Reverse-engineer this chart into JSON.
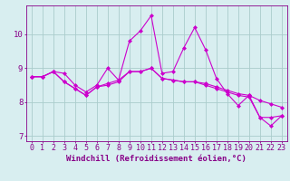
{
  "xlabel": "Windchill (Refroidissement éolien,°C)",
  "x": [
    0,
    1,
    2,
    3,
    4,
    5,
    6,
    7,
    8,
    9,
    10,
    11,
    12,
    13,
    14,
    15,
    16,
    17,
    18,
    19,
    20,
    21,
    22,
    23
  ],
  "line1": [
    8.75,
    8.75,
    8.9,
    8.85,
    8.5,
    8.3,
    8.5,
    9.0,
    8.65,
    9.8,
    10.1,
    10.55,
    8.85,
    8.9,
    9.6,
    10.2,
    9.55,
    8.7,
    8.25,
    7.9,
    8.2,
    7.55,
    7.55,
    7.6
  ],
  "line2": [
    8.75,
    8.75,
    8.9,
    8.6,
    8.4,
    8.2,
    8.45,
    8.5,
    8.6,
    8.9,
    8.9,
    9.0,
    8.7,
    8.65,
    8.6,
    8.6,
    8.55,
    8.45,
    8.35,
    8.25,
    8.2,
    8.05,
    7.95,
    7.85
  ],
  "line3": [
    8.75,
    8.75,
    8.9,
    8.6,
    8.4,
    8.2,
    8.45,
    8.55,
    8.65,
    8.9,
    8.9,
    9.0,
    8.7,
    8.65,
    8.6,
    8.6,
    8.5,
    8.4,
    8.3,
    8.2,
    8.15,
    7.55,
    7.3,
    7.6
  ],
  "line_color": "#cc00cc",
  "bg_color": "#d8eef0",
  "grid_color": "#aacccc",
  "ylim": [
    6.85,
    10.85
  ],
  "yticks": [
    7,
    8,
    9,
    10
  ],
  "xticks": [
    0,
    1,
    2,
    3,
    4,
    5,
    6,
    7,
    8,
    9,
    10,
    11,
    12,
    13,
    14,
    15,
    16,
    17,
    18,
    19,
    20,
    21,
    22,
    23
  ],
  "marker": "D",
  "markersize": 2.0,
  "linewidth": 0.8,
  "xlabel_fontsize": 6.5,
  "tick_fontsize": 6.0,
  "axis_color": "#880088"
}
